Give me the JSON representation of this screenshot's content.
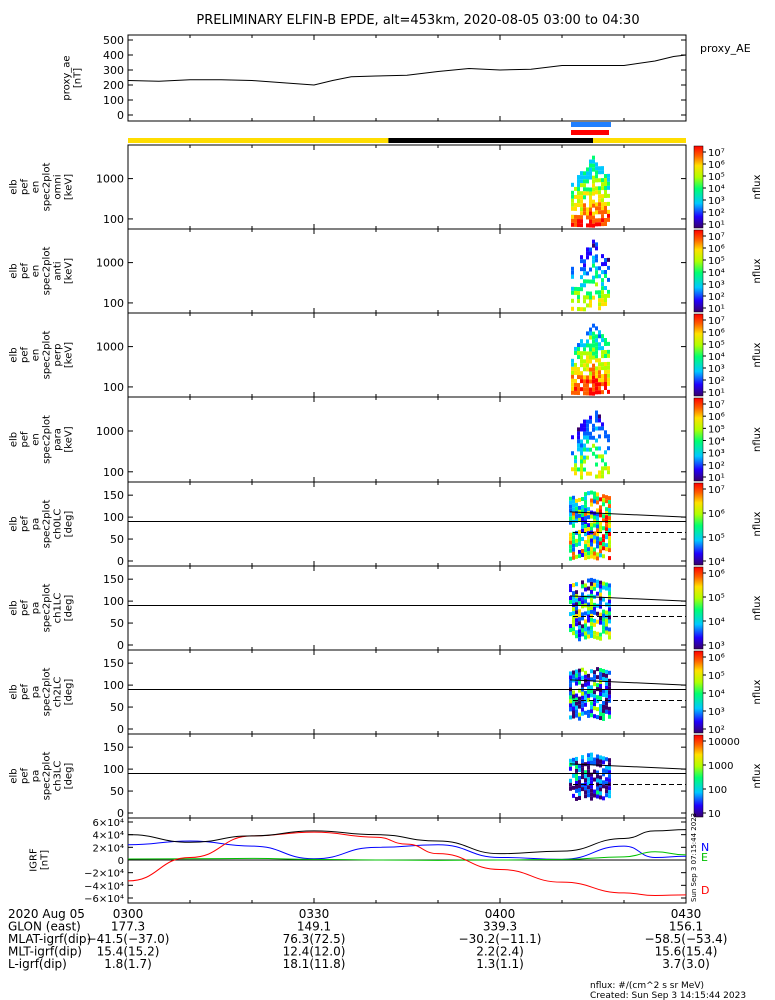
{
  "chart_data": {
    "type": "spectrogram-stack",
    "title": "PRELIMINARY ELFIN-B EPDE, alt=453km, 2020-08-05 03:00 to 04:30",
    "time_range": [
      "2020-08-05 03:00",
      "2020-08-05 04:30"
    ],
    "x_tick_labels": [
      "0300",
      "0330",
      "0400",
      "0430"
    ],
    "proxy_ae": {
      "ylabel": [
        "proxy_ae",
        "[nT]"
      ],
      "legend": "proxy_AE",
      "yticks": [
        "500",
        "400",
        "300",
        "200",
        "100",
        "0"
      ],
      "ylim": [
        0,
        500
      ],
      "t_minutes": [
        0,
        5,
        10,
        15,
        20,
        25,
        30,
        33,
        36,
        40,
        45,
        50,
        55,
        60,
        65,
        70,
        75,
        80,
        85,
        88,
        90
      ],
      "values": [
        230,
        225,
        235,
        235,
        230,
        215,
        200,
        230,
        255,
        260,
        265,
        290,
        310,
        300,
        305,
        330,
        330,
        330,
        360,
        390,
        400
      ]
    },
    "spectrograms": [
      {
        "ylabel": [
          "elb",
          "pef",
          "en",
          "spec2plot",
          "omni",
          "[keV]"
        ],
        "yticks": [
          "1000",
          "100"
        ],
        "cbar_labels": [
          "10⁷",
          "10⁶",
          "10⁵",
          "10⁴",
          "10³",
          "10²",
          "10¹"
        ],
        "cbar_title": "nflux"
      },
      {
        "ylabel": [
          "elb",
          "pef",
          "en",
          "spec2plot",
          "anti",
          "[keV]"
        ],
        "yticks": [
          "1000",
          "100"
        ],
        "cbar_labels": [
          "10⁷",
          "10⁶",
          "10⁵",
          "10⁴",
          "10³",
          "10²",
          "10¹"
        ],
        "cbar_title": "nflux"
      },
      {
        "ylabel": [
          "elb",
          "pef",
          "en",
          "spec2plot",
          "perp",
          "[keV]"
        ],
        "yticks": [
          "1000",
          "100"
        ],
        "cbar_labels": [
          "10⁷",
          "10⁶",
          "10⁵",
          "10⁴",
          "10³",
          "10²",
          "10¹"
        ],
        "cbar_title": "nflux"
      },
      {
        "ylabel": [
          "elb",
          "pef",
          "en",
          "spec2plot",
          "para",
          "[keV]"
        ],
        "yticks": [
          "1000",
          "100"
        ],
        "cbar_labels": [
          "10⁷",
          "10⁶",
          "10⁵",
          "10⁴",
          "10³",
          "10²",
          "10¹"
        ],
        "cbar_title": "nflux"
      },
      {
        "ylabel": [
          "elb",
          "pef",
          "pa",
          "spec2plot",
          "ch0LC",
          "[deg]"
        ],
        "yticks": [
          "150",
          "100",
          "50",
          "0"
        ],
        "cbar_labels": [
          "10⁷",
          "10⁶",
          "10⁵",
          "10⁴"
        ],
        "cbar_title": "nflux"
      },
      {
        "ylabel": [
          "elb",
          "pef",
          "pa",
          "spec2plot",
          "ch1LC",
          "[deg]"
        ],
        "yticks": [
          "150",
          "100",
          "50",
          "0"
        ],
        "cbar_labels": [
          "10⁶",
          "10⁵",
          "10⁴",
          "10³"
        ],
        "cbar_title": "nflux"
      },
      {
        "ylabel": [
          "elb",
          "pef",
          "pa",
          "spec2plot",
          "ch2LC",
          "[deg]"
        ],
        "yticks": [
          "150",
          "100",
          "50",
          "0"
        ],
        "cbar_labels": [
          "10⁶",
          "10⁵",
          "10⁴",
          "10³",
          "10²"
        ],
        "cbar_title": "nflux"
      },
      {
        "ylabel": [
          "elb",
          "pef",
          "pa",
          "spec2plot",
          "ch3LC",
          "[deg]"
        ],
        "yticks": [
          "150",
          "100",
          "50",
          "0"
        ],
        "cbar_labels": [
          "10000",
          "1000",
          "100",
          "10"
        ],
        "cbar_title": "nflux"
      }
    ],
    "igrf": {
      "ylabel": [
        "IGRF",
        "[nT]"
      ],
      "yticks": [
        "6×10⁴",
        "4×10⁴",
        "2×10⁴",
        "0",
        "−2×10⁴",
        "−4×10⁴",
        "−6×10⁴"
      ],
      "ylim": [
        -60000,
        60000
      ],
      "series": [
        {
          "name": "N",
          "color": "#0000ff",
          "t_minutes": [
            0,
            10,
            20,
            30,
            40,
            50,
            60,
            70,
            80,
            85,
            90
          ],
          "values": [
            24000,
            30000,
            22000,
            2000,
            20000,
            24000,
            4000,
            1000,
            22000,
            4000,
            6000
          ]
        },
        {
          "name": "E",
          "color": "#00c000",
          "t_minutes": [
            0,
            10,
            20,
            30,
            40,
            50,
            60,
            70,
            80,
            85,
            90
          ],
          "values": [
            1500,
            2000,
            2500,
            1000,
            0,
            -500,
            0,
            1000,
            5000,
            13000,
            8000
          ]
        },
        {
          "name": "D",
          "color": "#ff0000",
          "t_minutes": [
            0,
            10,
            20,
            30,
            40,
            45,
            50,
            60,
            70,
            80,
            85,
            90
          ],
          "values": [
            -33000,
            4000,
            38000,
            44000,
            36000,
            25000,
            10000,
            -15000,
            -35000,
            -52000,
            -56000,
            -55000
          ]
        },
        {
          "name": "",
          "color": "#000000",
          "t_minutes": [
            0,
            10,
            20,
            30,
            40,
            50,
            60,
            70,
            80,
            85,
            90
          ],
          "values": [
            40000,
            28000,
            38000,
            46000,
            40000,
            30000,
            10000,
            14000,
            34000,
            46000,
            48000
          ]
        }
      ]
    },
    "orbit_rows": [
      {
        "label": "2020 Aug 05",
        "values": [
          "0300",
          "0330",
          "0400",
          "0430"
        ]
      },
      {
        "label": "GLON (east)",
        "values": [
          "177.3",
          "149.1",
          "339.3",
          "156.1"
        ]
      },
      {
        "label": "MLAT-igrf(dip)",
        "values": [
          "−41.5(−37.0)",
          "76.3(72.5)",
          "−30.2(−11.1)",
          "−58.5(−53.4)"
        ]
      },
      {
        "label": "MLT-igrf(dip)",
        "values": [
          "15.4(15.2)",
          "12.4(12.0)",
          "2.2(2.4)",
          "15.6(15.4)"
        ]
      },
      {
        "label": "L-igrf(dip)",
        "values": [
          "1.8(1.7)",
          "18.1(11.8)",
          "1.3(1.1)",
          "3.7(3.0)"
        ]
      }
    ],
    "footer": [
      "nflux: #/(cm^2 s sr MeV)",
      "Created: Sun Sep  3 14:15:44 2023"
    ],
    "vertical_stamp": "Sun Sep  3 07:15:44 2023"
  }
}
